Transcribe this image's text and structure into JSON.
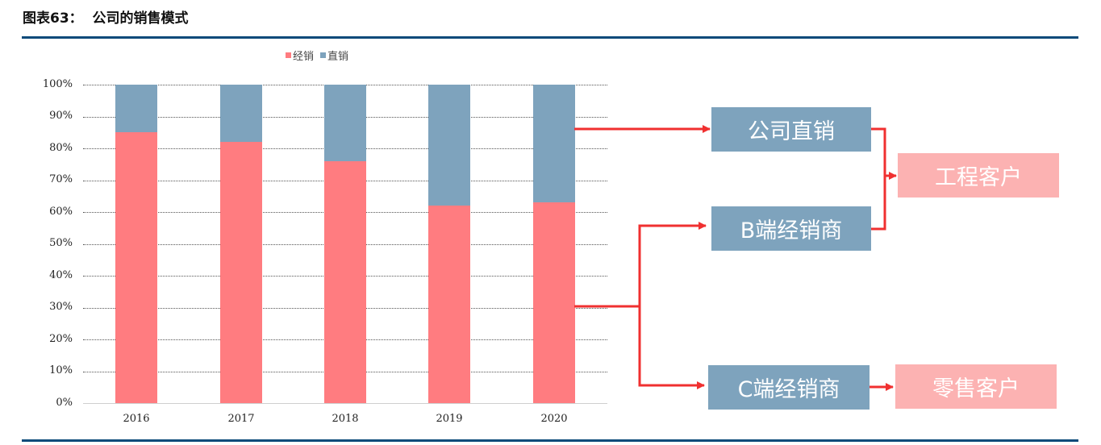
{
  "header": {
    "title": "图表63：  公司的销售模式"
  },
  "legend": [
    {
      "label": "经销",
      "color": "#ff7c80"
    },
    {
      "label": "直销",
      "color": "#7ea3bd"
    }
  ],
  "chart_data": {
    "type": "bar",
    "stacked": true,
    "title": "公司的销售模式",
    "categories": [
      "2016",
      "2017",
      "2018",
      "2019",
      "2020"
    ],
    "series": [
      {
        "name": "经销",
        "color": "#ff7c80",
        "values": [
          85,
          82,
          76,
          62,
          63
        ]
      },
      {
        "name": "直销",
        "color": "#7ea3bd",
        "values": [
          15,
          18,
          24,
          38,
          37
        ]
      }
    ],
    "xlabel": "",
    "ylabel": "",
    "ylim": [
      0,
      100
    ],
    "yticks": [
      "0%",
      "10%",
      "20%",
      "30%",
      "40%",
      "50%",
      "60%",
      "70%",
      "80%",
      "90%",
      "100%"
    ],
    "grid": true,
    "legend_position": "top"
  },
  "diagram": {
    "direct_sales": "公司直销",
    "b_distributor": "B端经销商",
    "c_distributor": "C端经销商",
    "engineering_customers": "工程客户",
    "retail_customers": "零售客户",
    "arrow_color": "#f03030"
  }
}
